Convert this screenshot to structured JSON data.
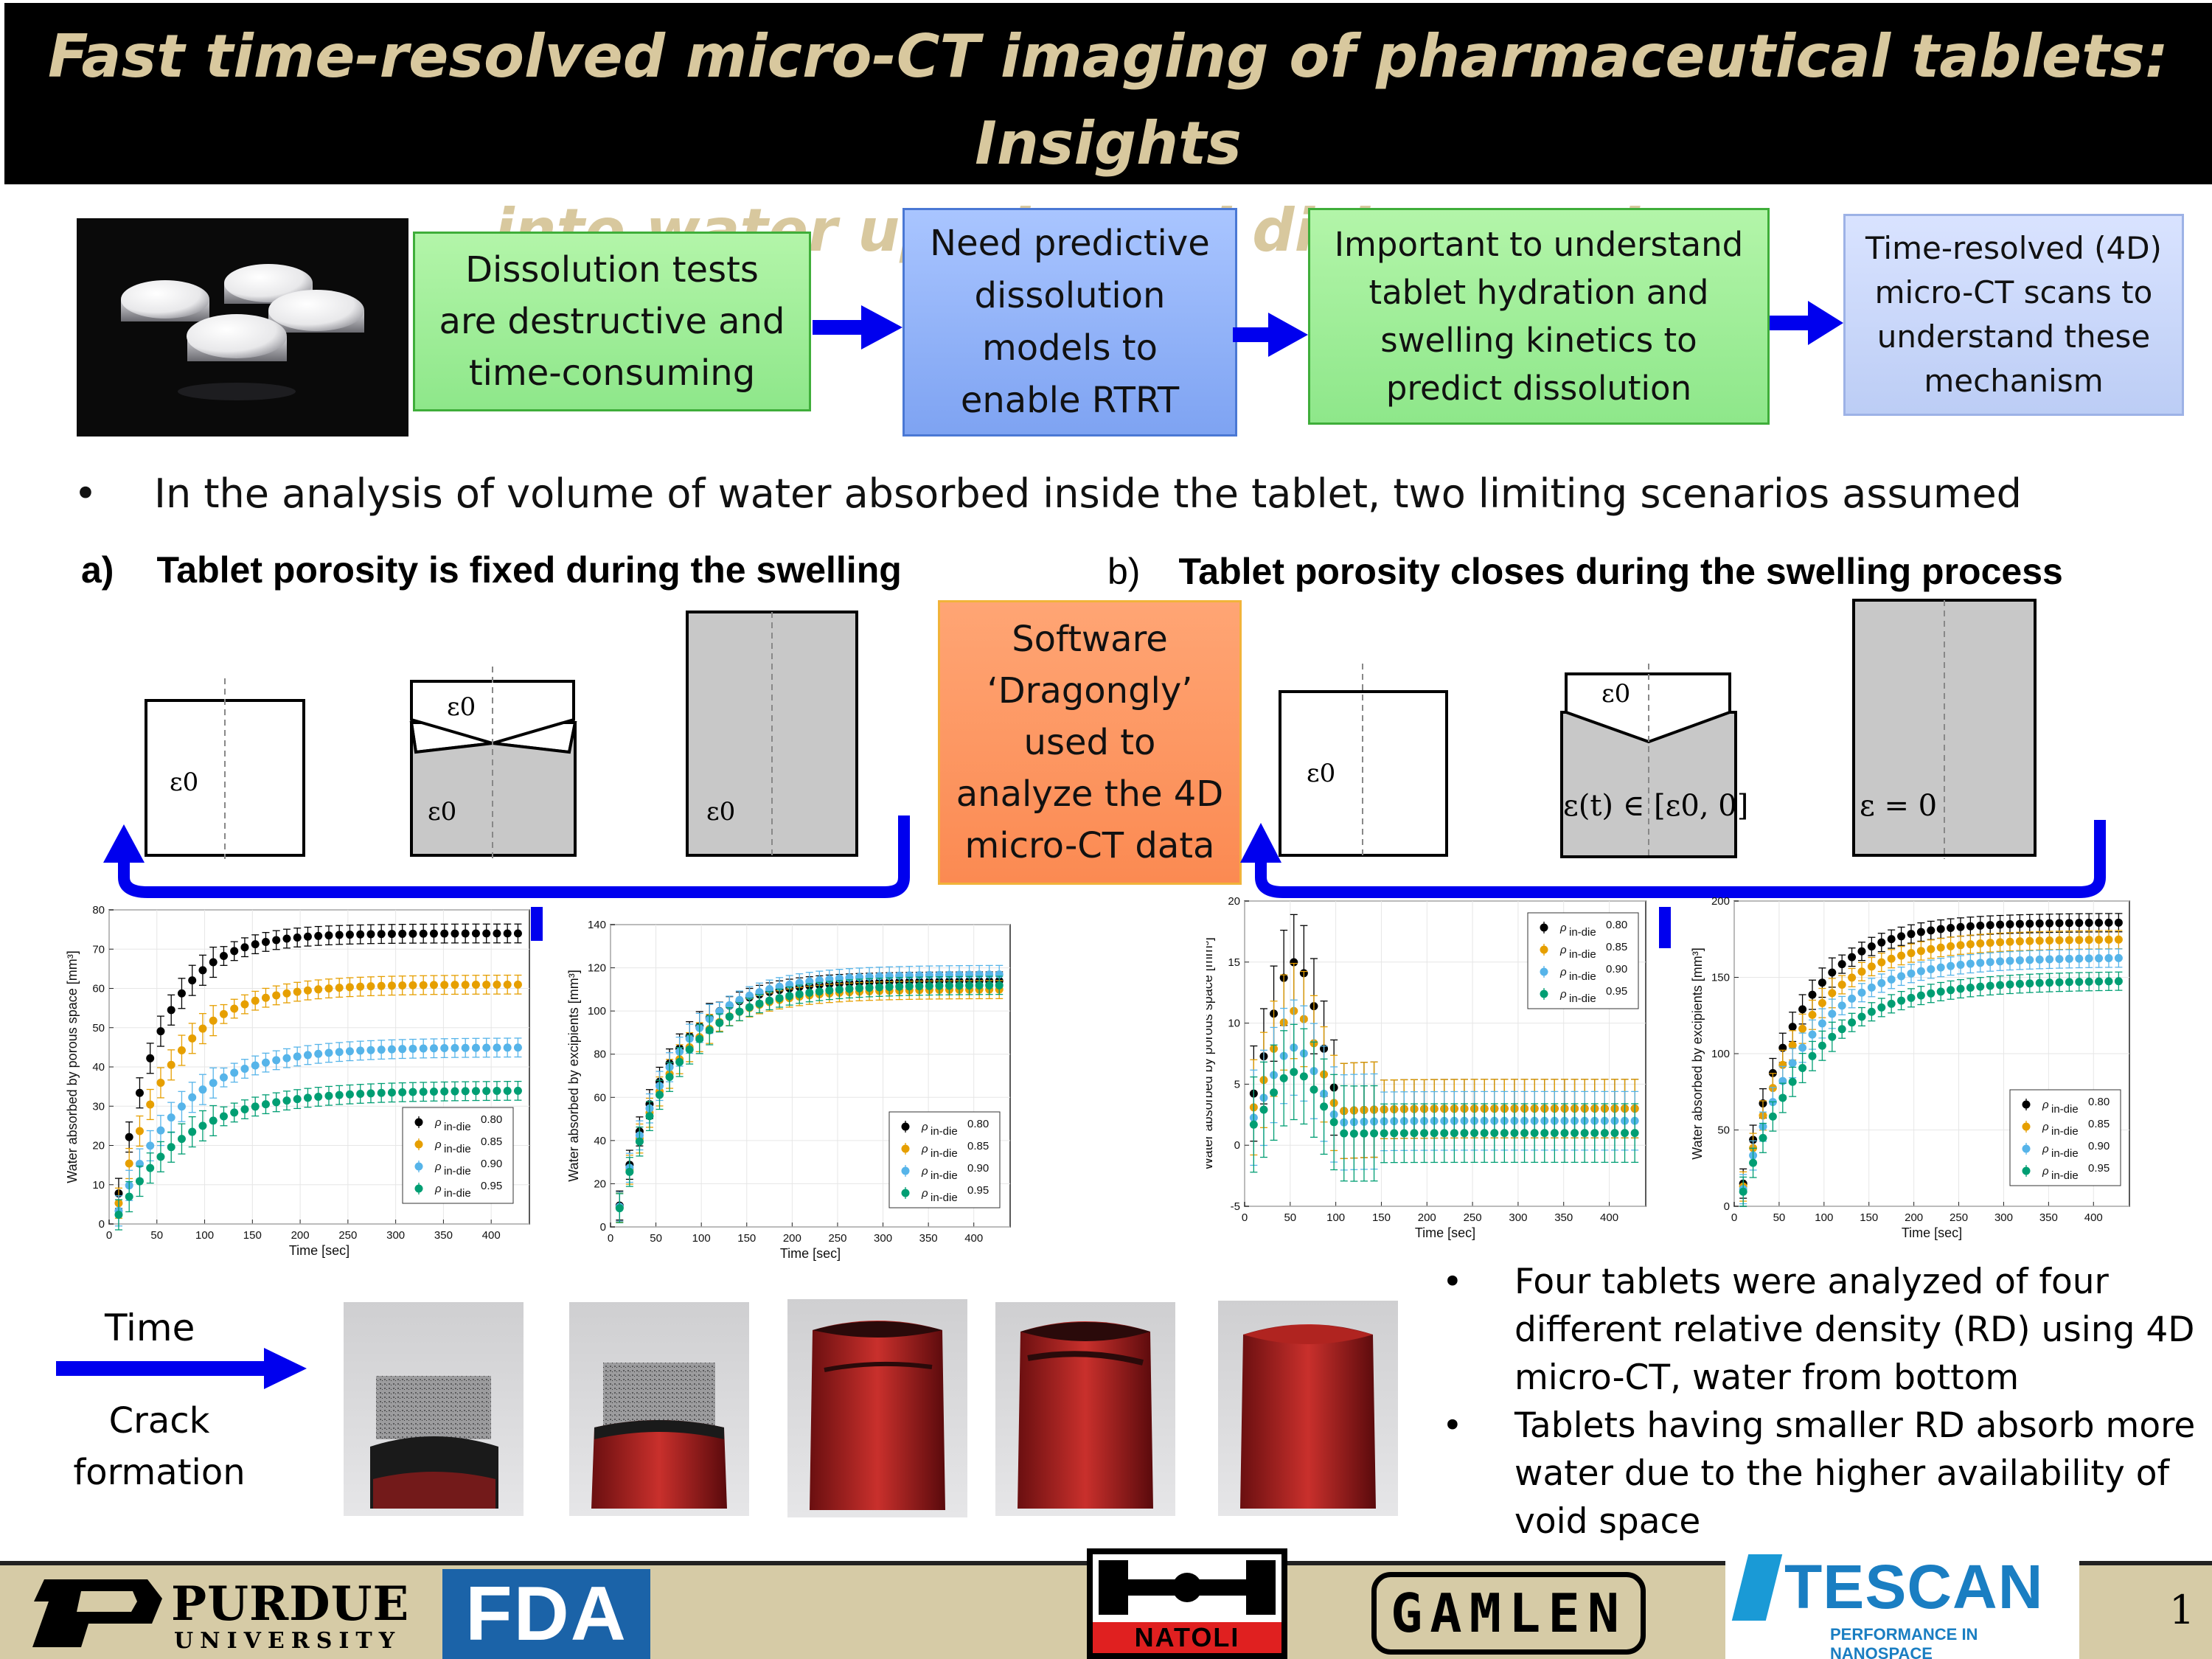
{
  "title": {
    "line1": "Fast time-resolved micro-CT imaging of pharmaceutical tablets: Insights",
    "line2": "into water uptake and disintegration"
  },
  "flow": {
    "box1": [
      "Dissolution tests",
      "are destructive and",
      "time-consuming"
    ],
    "box2": [
      "Need predictive",
      "dissolution",
      "models to",
      "enable RTRT"
    ],
    "box3": [
      "Important to understand",
      "tablet hydration and",
      "swelling kinetics to",
      "predict dissolution"
    ],
    "box4": [
      "Time-resolved (4D)",
      "micro-CT scans to",
      "understand these",
      "mechanism"
    ]
  },
  "bullet_main": "In the analysis of volume of water absorbed inside the tablet, two limiting scenarios assumed",
  "scenario_a": {
    "letter": "a)",
    "text": "Tablet porosity is fixed during the swelling"
  },
  "scenario_b": {
    "letter": "b)",
    "text": "Tablet porosity closes during the swelling process"
  },
  "software_box": [
    "Software",
    "‘Dragongly’",
    "used to",
    "analyze the 4D",
    "micro-CT data"
  ],
  "diagram_labels": {
    "eps0": "ε0",
    "eps_t": "ε(t) ∈ [ε0, 0]",
    "eps_zero": "ε = 0"
  },
  "legend": {
    "rho": "ρ",
    "sub": "in-die",
    "values": [
      "0.80",
      "0.85",
      "0.90",
      "0.95"
    ]
  },
  "colors": {
    "s080": "#000000",
    "s085": "#e69f00",
    "s090": "#56b4e9",
    "s095": "#009e73",
    "arrow": "#0000ee"
  },
  "chart_data": [
    {
      "type": "scatter",
      "xlabel": "Time [sec]",
      "ylabel": "Water absorbed by porous space [mm³]",
      "xlim": [
        0,
        440
      ],
      "ylim": [
        0,
        80
      ],
      "xticks": [
        0,
        50,
        100,
        150,
        200,
        250,
        300,
        350,
        400
      ],
      "yticks": [
        0,
        10,
        20,
        30,
        40,
        50,
        60,
        70,
        80
      ],
      "error_bars": true,
      "series": [
        {
          "name": "0.80",
          "plateau": 74,
          "tau": 45
        },
        {
          "name": "0.85",
          "plateau": 61,
          "tau": 55
        },
        {
          "name": "0.90",
          "plateau": 45,
          "tau": 65
        },
        {
          "name": "0.95",
          "plateau": 34,
          "tau": 70
        }
      ]
    },
    {
      "type": "scatter",
      "xlabel": "Time [sec]",
      "ylabel": "Water absorbed by excipients [mm³]",
      "xlim": [
        0,
        440
      ],
      "ylim": [
        0,
        140
      ],
      "xticks": [
        0,
        50,
        100,
        150,
        200,
        250,
        300,
        350,
        400
      ],
      "yticks": [
        0,
        20,
        40,
        60,
        80,
        100,
        120,
        140
      ],
      "error_bars": true,
      "series": [
        {
          "name": "0.80",
          "plateau": 114,
          "tau": 55
        },
        {
          "name": "0.85",
          "plateau": 110,
          "tau": 58
        },
        {
          "name": "0.90",
          "plateau": 117,
          "tau": 60
        },
        {
          "name": "0.95",
          "plateau": 112,
          "tau": 62
        }
      ]
    },
    {
      "type": "scatter",
      "xlabel": "Time [sec]",
      "ylabel": "Water absorbed by porous space [mm³]",
      "xlim": [
        0,
        440
      ],
      "ylim": [
        -5,
        20
      ],
      "xticks": [
        0,
        50,
        100,
        150,
        200,
        250,
        300,
        350,
        400
      ],
      "yticks": [
        -5,
        0,
        5,
        10,
        15,
        20
      ],
      "error_bars": true,
      "series": [
        {
          "name": "0.80",
          "peak": 15,
          "final": 3
        },
        {
          "name": "0.85",
          "peak": 11,
          "final": 3
        },
        {
          "name": "0.90",
          "peak": 8,
          "final": 2
        },
        {
          "name": "0.95",
          "peak": 6,
          "final": 1
        }
      ]
    },
    {
      "type": "scatter",
      "xlabel": "Time [sec]",
      "ylabel": "Water absorbed by excipients [mm³]",
      "xlim": [
        0,
        440
      ],
      "ylim": [
        0,
        200
      ],
      "xticks": [
        0,
        50,
        100,
        150,
        200,
        250,
        300,
        350,
        400
      ],
      "yticks": [
        0,
        50,
        100,
        150,
        200
      ],
      "error_bars": true,
      "series": [
        {
          "name": "0.80",
          "plateau": 186,
          "tau": 60
        },
        {
          "name": "0.85",
          "plateau": 175,
          "tau": 65
        },
        {
          "name": "0.90",
          "plateau": 163,
          "tau": 70
        },
        {
          "name": "0.95",
          "plateau": 148,
          "tau": 75
        }
      ]
    }
  ],
  "time_label": "Time",
  "crack_label": [
    "Crack",
    "formation"
  ],
  "bullets_right": [
    [
      "Four tablets were analyzed of four",
      "different relative density (RD) using 4D",
      "micro-CT, water from bottom"
    ],
    [
      "Tablets having smaller RD absorb more",
      "water due to the higher availability of",
      "void space"
    ]
  ],
  "footer": {
    "purdue_main": "PURDUE",
    "purdue_sub": "UNIVERSITY",
    "fda": "FDA",
    "natoli": "NATOLI",
    "gamlen": "GAMLEN",
    "tescan": "TESCAN",
    "tescan_tag": "PERFORMANCE IN NANOSPACE",
    "page_number": "1"
  }
}
